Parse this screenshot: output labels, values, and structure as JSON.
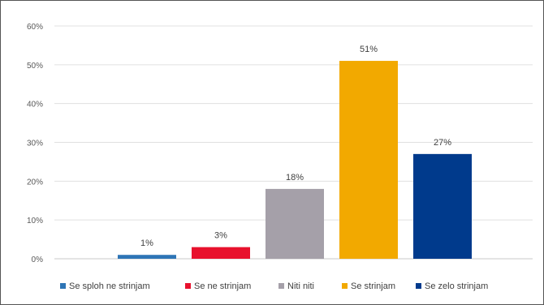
{
  "chart_data": {
    "type": "bar",
    "categories": [
      "Se sploh ne strinjam",
      "Se ne strinjam",
      "Niti niti",
      "Se strinjam",
      "Se zelo strinjam"
    ],
    "values": [
      1,
      3,
      18,
      51,
      27
    ],
    "value_labels": [
      "1%",
      "3%",
      "18%",
      "51%",
      "27%"
    ],
    "colors": [
      "#2e75b6",
      "#e8112d",
      "#a5a0a9",
      "#f2a900",
      "#003a8c"
    ],
    "ylim": [
      0,
      60
    ],
    "y_ticks": [
      0,
      10,
      20,
      30,
      40,
      50,
      60
    ],
    "y_tick_labels": [
      "0%",
      "10%",
      "20%",
      "30%",
      "40%",
      "50%",
      "60%"
    ],
    "grid": true,
    "legend_position": "bottom",
    "title": "",
    "xlabel": "",
    "ylabel": ""
  }
}
